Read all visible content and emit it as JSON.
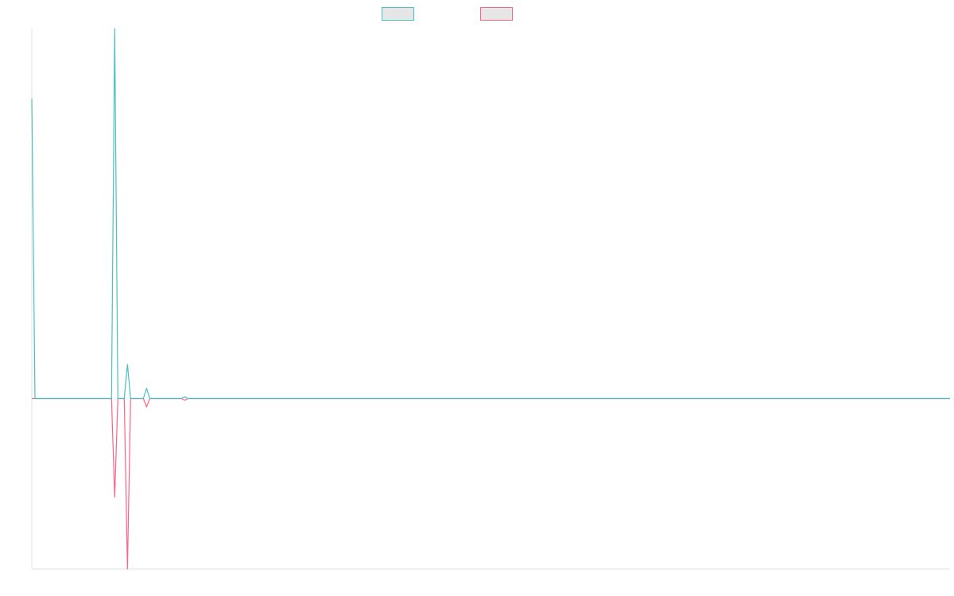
{
  "chart_data": {
    "type": "line",
    "title": "",
    "xlabel": "",
    "ylabel": "",
    "grid": false,
    "legend_position": "top-center",
    "ylim": [
      -1,
      2.17
    ],
    "series": [
      {
        "name": "",
        "color": "#4bc0c0",
        "points": [
          [
            0,
            1.76
          ],
          [
            1,
            0
          ],
          [
            25,
            0
          ],
          [
            26,
            2.17
          ],
          [
            27,
            0
          ],
          [
            29,
            0
          ],
          [
            30,
            0.2
          ],
          [
            31,
            0
          ],
          [
            35,
            0
          ],
          [
            36,
            0.06
          ],
          [
            37,
            0
          ],
          [
            47,
            0
          ],
          [
            48,
            0.01
          ],
          [
            49,
            0
          ],
          [
            288,
            0
          ]
        ]
      },
      {
        "name": "",
        "color": "#ff6384",
        "points": [
          [
            0,
            0
          ],
          [
            25,
            0
          ],
          [
            26,
            -0.58
          ],
          [
            27,
            0
          ],
          [
            29,
            0
          ],
          [
            30,
            -1
          ],
          [
            31,
            0
          ],
          [
            35,
            0
          ],
          [
            36,
            -0.05
          ],
          [
            37,
            0
          ],
          [
            47,
            0
          ],
          [
            48,
            -0.01
          ],
          [
            49,
            0
          ],
          [
            288,
            0
          ]
        ]
      }
    ]
  }
}
